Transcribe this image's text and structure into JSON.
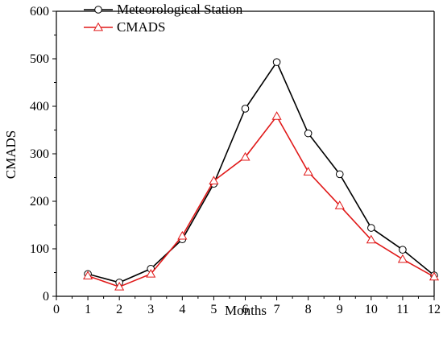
{
  "chart_data": {
    "type": "line",
    "xlabel": "Months",
    "ylabel": "CMADS",
    "xlim": [
      0,
      12
    ],
    "ylim": [
      0,
      600
    ],
    "x_ticks": [
      "0",
      "1",
      "2",
      "3",
      "4",
      "5",
      "6",
      "7",
      "8",
      "9",
      "10",
      "11",
      "12"
    ],
    "y_ticks": [
      "0",
      "100",
      "200",
      "300",
      "400",
      "500",
      "600"
    ],
    "grid": false,
    "legend_placement": "top-left",
    "x": [
      1,
      2,
      3,
      4,
      5,
      6,
      7,
      8,
      9,
      10,
      11,
      12
    ],
    "series": [
      {
        "name": "Meteorological Station",
        "marker": "circle",
        "color": "#000000",
        "values": [
          47,
          29,
          58,
          120,
          237,
          395,
          493,
          343,
          257,
          144,
          98,
          44
        ]
      },
      {
        "name": "CMADS",
        "marker": "triangle",
        "color": "#e01818",
        "values": [
          43,
          20,
          47,
          127,
          243,
          293,
          379,
          262,
          191,
          119,
          78,
          41
        ]
      }
    ]
  }
}
